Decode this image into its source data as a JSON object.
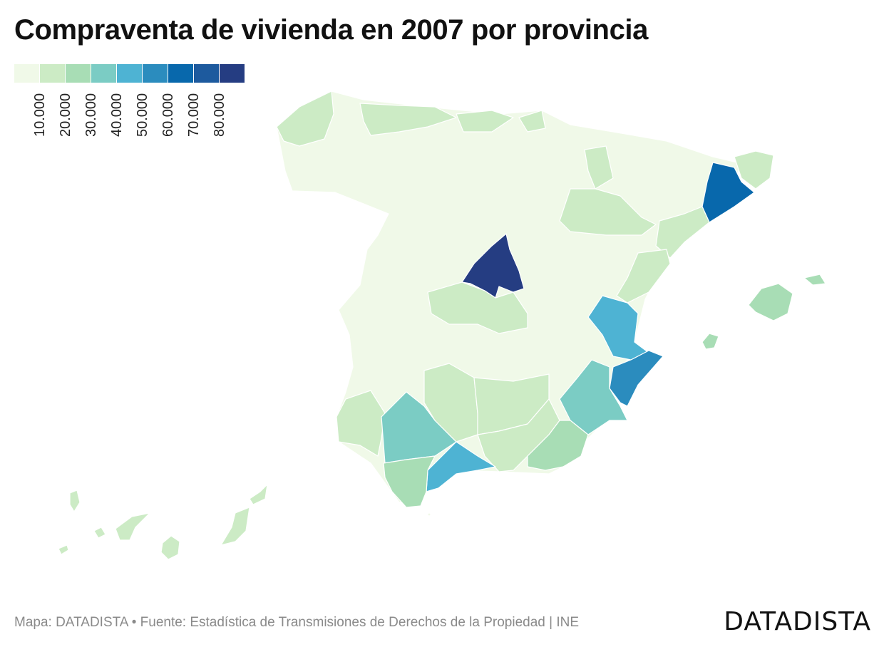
{
  "title": "Compraventa de vivienda en 2007 por provincia",
  "legend": {
    "colors": [
      "#f0f9e8",
      "#ccebc5",
      "#a8ddb5",
      "#7bccc4",
      "#4eb3d3",
      "#2b8cbe",
      "#0868ac",
      "#1d5a9e",
      "#253d82"
    ],
    "ticks": [
      "10.000",
      "20.000",
      "30.000",
      "40.000",
      "50.000",
      "60.000",
      "70.000",
      "80.000"
    ]
  },
  "chart_data": {
    "type": "choropleth",
    "title": "Compraventa de vivienda en 2007 por provincia",
    "bins": [
      0,
      10000,
      20000,
      30000,
      40000,
      50000,
      60000,
      70000,
      80000
    ],
    "regions": [
      {
        "name": "Madrid",
        "bin": 8
      },
      {
        "name": "Barcelona",
        "bin": 6
      },
      {
        "name": "Alicante",
        "bin": 5
      },
      {
        "name": "Valencia",
        "bin": 4
      },
      {
        "name": "Málaga",
        "bin": 4
      },
      {
        "name": "Sevilla",
        "bin": 3
      },
      {
        "name": "Murcia",
        "bin": 3
      },
      {
        "name": "Almería",
        "bin": 2
      },
      {
        "name": "Cádiz",
        "bin": 2
      },
      {
        "name": "Baleares",
        "bin": 2
      },
      {
        "name": "Toledo",
        "bin": 1
      },
      {
        "name": "Girona",
        "bin": 1
      },
      {
        "name": "Tarragona",
        "bin": 1
      },
      {
        "name": "Castellón",
        "bin": 1
      },
      {
        "name": "Zaragoza",
        "bin": 1
      },
      {
        "name": "Navarra",
        "bin": 1
      },
      {
        "name": "A Coruña",
        "bin": 1
      },
      {
        "name": "Asturias",
        "bin": 1
      },
      {
        "name": "Cantabria",
        "bin": 1
      },
      {
        "name": "Vizcaya",
        "bin": 1
      },
      {
        "name": "Huelva",
        "bin": 1
      },
      {
        "name": "Córdoba",
        "bin": 1
      },
      {
        "name": "Jaén",
        "bin": 1
      },
      {
        "name": "Granada",
        "bin": 1
      },
      {
        "name": "Santa Cruz de Tenerife",
        "bin": 1
      },
      {
        "name": "Las Palmas",
        "bin": 1
      }
    ]
  },
  "footer": {
    "source": "Mapa: DATADISTA • Fuente: Estadística de Transmisiones de Derechos de la Propiedad | INE",
    "brand": "DATADISTA"
  }
}
